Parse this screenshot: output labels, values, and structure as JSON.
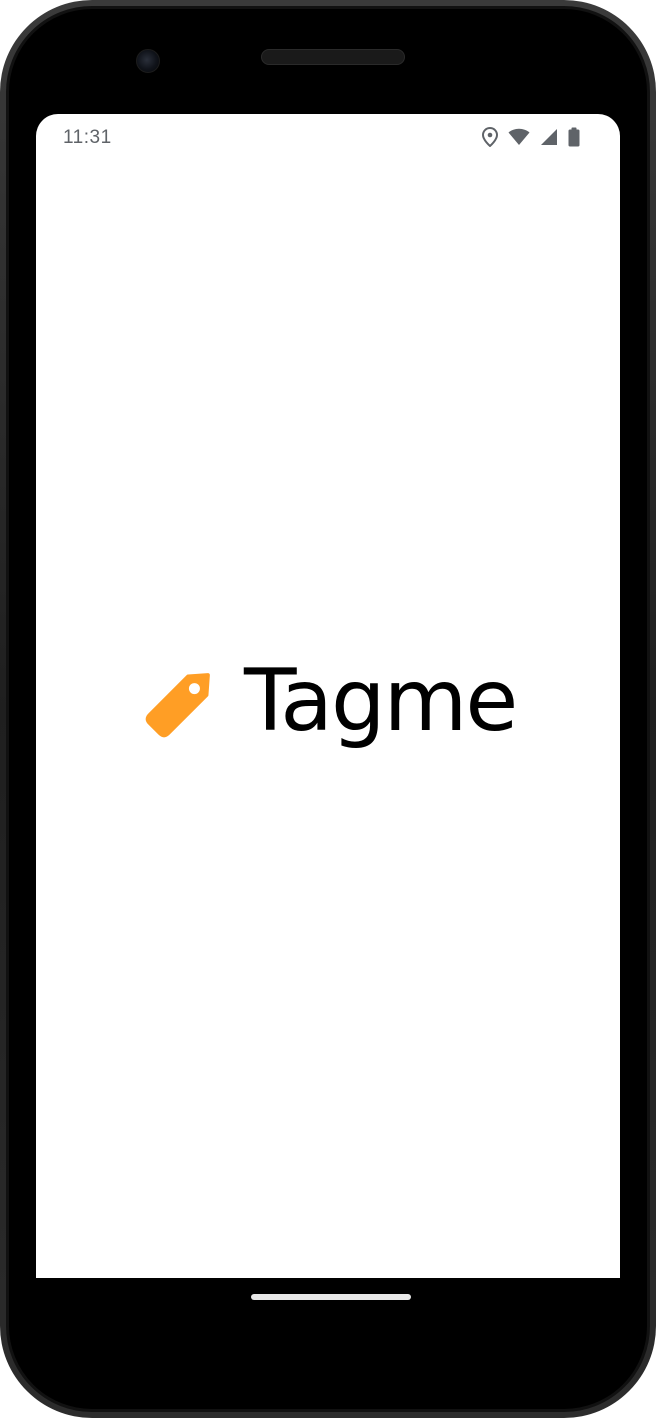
{
  "status_bar": {
    "time": "11:31",
    "icons": [
      "location-icon",
      "wifi-icon",
      "cellular-signal-icon",
      "battery-icon"
    ]
  },
  "brand": {
    "name": "Tagme",
    "logo_icon": "tag-icon",
    "logo_color": "#FF9E25"
  },
  "colors": {
    "text_primary": "#000000",
    "status_text": "#5f6368",
    "background": "#ffffff"
  }
}
